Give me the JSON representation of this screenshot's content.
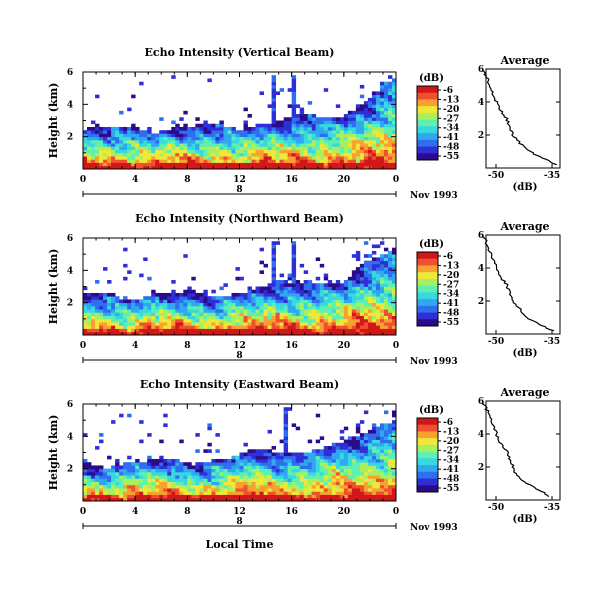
{
  "figure": {
    "x_axis_label": "Local Time",
    "date_label": "Nov 1993",
    "day_label": "8",
    "colorbar_unit": "(dB)",
    "colorbar_ticks": [
      "-6",
      "-13",
      "-20",
      "-27",
      "-34",
      "-41",
      "-48",
      "-55"
    ],
    "colormap": [
      "#2a0c8a",
      "#2f2fd8",
      "#2f6fef",
      "#2fa8f0",
      "#38d8e0",
      "#5ef0b0",
      "#a8f060",
      "#f0e838",
      "#f8a030",
      "#f05030",
      "#d01818"
    ]
  },
  "chart_data": [
    {
      "type": "heatmap",
      "title": "Echo Intensity (Vertical Beam)",
      "ylabel": "Height (km)",
      "xlim": [
        0,
        24
      ],
      "ylim": [
        0,
        6
      ],
      "x_ticks": [
        "0",
        "4",
        "8",
        "12",
        "16",
        "20",
        "0"
      ],
      "y_ticks": [
        "2",
        "4",
        "6"
      ],
      "color_range_db": [
        -55,
        -6
      ],
      "profile": {
        "title": "Average",
        "xlabel": "(dB)",
        "x_ticks": [
          "-50",
          "-35"
        ],
        "y_ticks": [
          "2",
          "4",
          "6"
        ],
        "heights_km": [
          0.2,
          0.6,
          1.0,
          1.5,
          2.0,
          2.5,
          3.0,
          3.5,
          4.0,
          4.5,
          5.0,
          5.5,
          5.9
        ],
        "values_db": [
          -33,
          -37,
          -41,
          -44,
          -46,
          -47,
          -48,
          -50,
          -51,
          -52,
          -53,
          -54,
          -55
        ]
      }
    },
    {
      "type": "heatmap",
      "title": "Echo Intensity (Northward Beam)",
      "ylabel": "Height (km)",
      "xlim": [
        0,
        24
      ],
      "ylim": [
        0,
        6
      ],
      "x_ticks": [
        "0",
        "4",
        "8",
        "12",
        "16",
        "20",
        "0"
      ],
      "y_ticks": [
        "2",
        "4",
        "6"
      ],
      "color_range_db": [
        -55,
        -6
      ],
      "profile": {
        "title": "Average",
        "xlabel": "(dB)",
        "x_ticks": [
          "-50",
          "-35"
        ],
        "y_ticks": [
          "2",
          "4",
          "6"
        ],
        "heights_km": [
          0.2,
          0.6,
          1.0,
          1.5,
          2.0,
          2.5,
          3.0,
          3.5,
          4.0,
          4.5,
          5.0,
          5.5,
          5.9
        ],
        "values_db": [
          -34,
          -38,
          -42,
          -44,
          -46,
          -47,
          -48,
          -50,
          -51,
          -52,
          -53,
          -54,
          -55
        ]
      }
    },
    {
      "type": "heatmap",
      "title": "Echo Intensity (Eastward Beam)",
      "ylabel": "Height (km)",
      "xlim": [
        0,
        24
      ],
      "ylim": [
        0,
        6
      ],
      "x_ticks": [
        "0",
        "4",
        "8",
        "12",
        "16",
        "20",
        "0"
      ],
      "y_ticks": [
        "2",
        "4",
        "6"
      ],
      "color_range_db": [
        -55,
        -6
      ],
      "profile": {
        "title": "Average",
        "xlabel": "(dB)",
        "x_ticks": [
          "-50",
          "-35"
        ],
        "y_ticks": [
          "2",
          "4",
          "6"
        ],
        "heights_km": [
          0.2,
          0.6,
          1.0,
          1.5,
          2.0,
          2.5,
          3.0,
          3.5,
          4.0,
          4.5,
          5.0,
          5.5,
          5.9
        ],
        "values_db": [
          -35,
          -38,
          -42,
          -45,
          -46,
          -47,
          -48,
          -50,
          -51,
          -52,
          -53,
          -54,
          -55
        ]
      }
    }
  ]
}
